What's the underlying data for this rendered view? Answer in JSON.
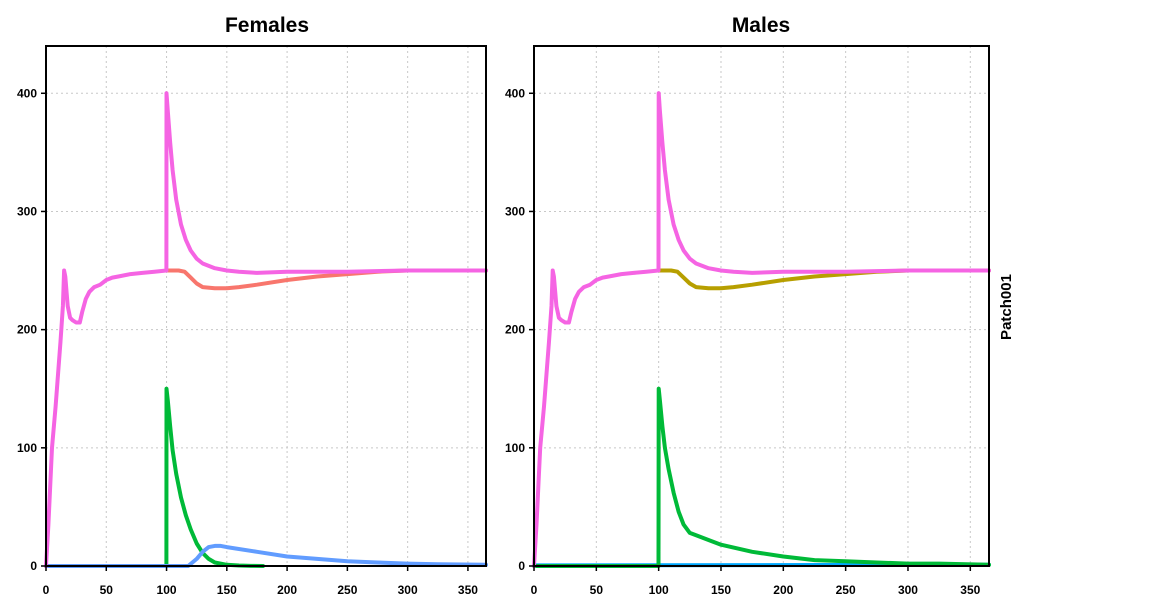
{
  "strip_label": "Patch001",
  "chart_data": [
    {
      "type": "line",
      "title": "Females",
      "xlim": [
        0,
        365
      ],
      "ylim": [
        0,
        440
      ],
      "x_ticks": [
        0,
        50,
        100,
        150,
        200,
        250,
        300,
        350
      ],
      "y_ticks": [
        0,
        100,
        200,
        300,
        400
      ],
      "grid": true,
      "series": [
        {
          "color": "#00ba38",
          "x": [
            0,
            99.9,
            100,
            101,
            103,
            105,
            108,
            112,
            116,
            120,
            125,
            130,
            135,
            140,
            150,
            160,
            170,
            180
          ],
          "y": [
            0,
            0,
            150,
            140,
            118,
            98,
            78,
            58,
            43,
            31,
            19,
            11,
            6,
            3,
            1,
            0.4,
            0.1,
            0
          ]
        },
        {
          "color": "#619cff",
          "x": [
            0,
            118,
            125,
            130,
            135,
            140,
            145,
            150,
            175,
            200,
            225,
            250,
            275,
            300,
            325,
            365
          ],
          "y": [
            0,
            0,
            6,
            12,
            16,
            17,
            17,
            16,
            12,
            8,
            6,
            4,
            3,
            2,
            1.5,
            1
          ]
        },
        {
          "color": "#f8766d",
          "x": [
            100,
            110,
            115,
            120,
            125,
            130,
            140,
            150,
            160,
            175,
            200,
            225,
            250,
            275,
            300,
            325,
            365
          ],
          "y": [
            250,
            250,
            249,
            244,
            239,
            236,
            235,
            235,
            236,
            238,
            242,
            245,
            247,
            249,
            250,
            250,
            250
          ]
        },
        {
          "color": "#f564e3",
          "x": [
            0,
            2,
            5,
            8,
            12,
            14,
            15,
            16,
            18,
            20,
            22,
            25,
            28,
            30,
            33,
            36,
            40,
            45,
            50,
            55,
            60,
            70,
            80,
            90,
            99.9,
            100,
            101,
            103,
            105,
            108,
            112,
            116,
            120,
            125,
            130,
            140,
            150,
            160,
            175,
            200,
            250,
            300,
            365
          ],
          "y": [
            0,
            35,
            100,
            135,
            190,
            220,
            250,
            245,
            220,
            210,
            208,
            206,
            206,
            215,
            226,
            232,
            236,
            238,
            242,
            244,
            245,
            247,
            248,
            249,
            250,
            400,
            385,
            358,
            335,
            310,
            289,
            276,
            267,
            260,
            256,
            252,
            250,
            249,
            248,
            249,
            249,
            250,
            250
          ]
        }
      ]
    },
    {
      "type": "line",
      "title": "Males",
      "xlim": [
        0,
        365
      ],
      "ylim": [
        0,
        440
      ],
      "x_ticks": [
        0,
        50,
        100,
        150,
        200,
        250,
        300,
        350
      ],
      "y_ticks": [
        0,
        100,
        200,
        300,
        400
      ],
      "grid": true,
      "series": [
        {
          "color": "#00a9ff",
          "x": [
            0,
            365
          ],
          "y": [
            0.5,
            1
          ]
        },
        {
          "color": "#00ba38",
          "x": [
            0,
            99.9,
            100,
            101,
            103,
            105,
            108,
            112,
            116,
            120,
            125,
            130,
            140,
            150,
            175,
            200,
            225,
            250,
            275,
            300,
            325,
            365
          ],
          "y": [
            0,
            0,
            150,
            140,
            118,
            100,
            82,
            62,
            46,
            35,
            28,
            26,
            22,
            18,
            12,
            8,
            5,
            4,
            3,
            2,
            2,
            1
          ]
        },
        {
          "color": "#b79f00",
          "x": [
            100,
            110,
            115,
            120,
            125,
            130,
            140,
            150,
            160,
            175,
            200,
            225,
            250,
            275,
            300,
            325,
            365
          ],
          "y": [
            250,
            250,
            249,
            244,
            239,
            236,
            235,
            235,
            236,
            238,
            242,
            245,
            247,
            249,
            250,
            250,
            250
          ]
        },
        {
          "color": "#f564e3",
          "x": [
            0,
            2,
            5,
            8,
            12,
            14,
            15,
            16,
            18,
            20,
            22,
            25,
            28,
            30,
            33,
            36,
            40,
            45,
            50,
            55,
            60,
            70,
            80,
            90,
            99.9,
            100,
            101,
            103,
            105,
            108,
            112,
            116,
            120,
            125,
            130,
            140,
            150,
            160,
            175,
            200,
            250,
            300,
            365
          ],
          "y": [
            0,
            35,
            100,
            135,
            190,
            220,
            250,
            245,
            220,
            210,
            208,
            206,
            206,
            215,
            226,
            232,
            236,
            238,
            242,
            244,
            245,
            247,
            248,
            249,
            250,
            400,
            385,
            358,
            335,
            310,
            289,
            276,
            267,
            260,
            256,
            252,
            250,
            249,
            248,
            249,
            249,
            250,
            250
          ]
        }
      ]
    }
  ]
}
